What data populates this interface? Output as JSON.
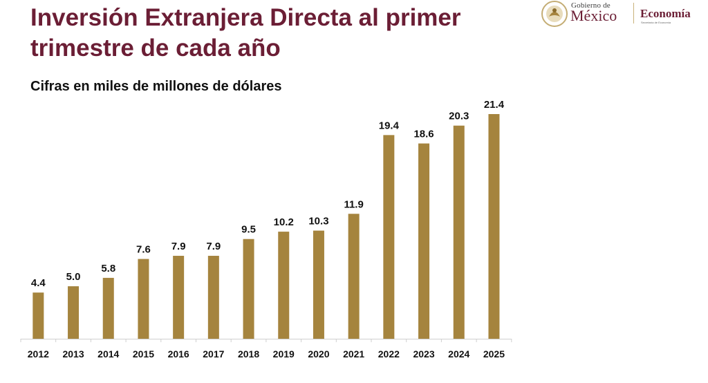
{
  "header": {
    "title": "Inversión Extranjera Directa al primer trimestre de cada año",
    "subtitle": "Cifras en miles de millones de dólares"
  },
  "logo": {
    "gobierno_small": "Gobierno de",
    "gobierno_big": "México",
    "secretaria": "Economía",
    "secretaria_small": "Secretaría de Economía"
  },
  "colors": {
    "title": "#6b1e35",
    "bar": "#a5843e",
    "axis": "#cfcfcf"
  },
  "chart_data": {
    "type": "bar",
    "categories": [
      "2012",
      "2013",
      "2014",
      "2015",
      "2016",
      "2017",
      "2018",
      "2019",
      "2020",
      "2021",
      "2022",
      "2023",
      "2024",
      "2025"
    ],
    "values": [
      4.4,
      5.0,
      5.8,
      7.6,
      7.9,
      7.9,
      9.5,
      10.2,
      10.3,
      11.9,
      19.4,
      18.6,
      20.3,
      21.4
    ],
    "value_labels": [
      "4.4",
      "5.0",
      "5.8",
      "7.6",
      "7.9",
      "7.9",
      "9.5",
      "10.2",
      "10.3",
      "11.9",
      "19.4",
      "18.6",
      "20.3",
      "21.4"
    ],
    "ylim": [
      0,
      21.4
    ],
    "grid": false,
    "legend": "none"
  }
}
